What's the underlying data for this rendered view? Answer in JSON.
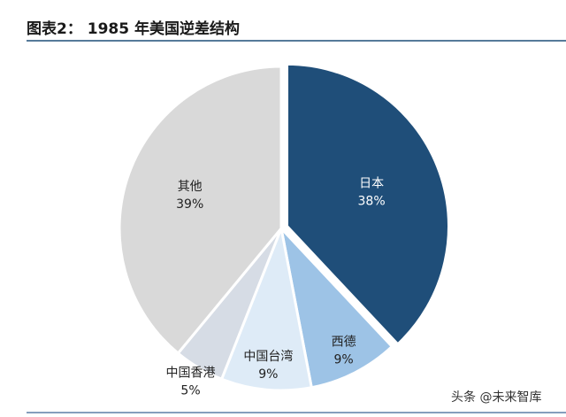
{
  "chart_data": {
    "type": "pie",
    "title": "图表2： 1985 年美国逆差结构",
    "categories": [
      "日本",
      "西德",
      "中国台湾",
      "中国香港",
      "其他"
    ],
    "values": [
      38,
      9,
      9,
      5,
      39
    ],
    "value_labels": [
      "38%",
      "9%",
      "9%",
      "5%",
      "39%"
    ],
    "colors": [
      "#1f4e79",
      "#9dc3e6",
      "#deebf7",
      "#d6dce5",
      "#d9d9d9"
    ],
    "exploded": [
      true,
      false,
      false,
      false,
      false
    ]
  },
  "watermark": "头条 @未来智库"
}
